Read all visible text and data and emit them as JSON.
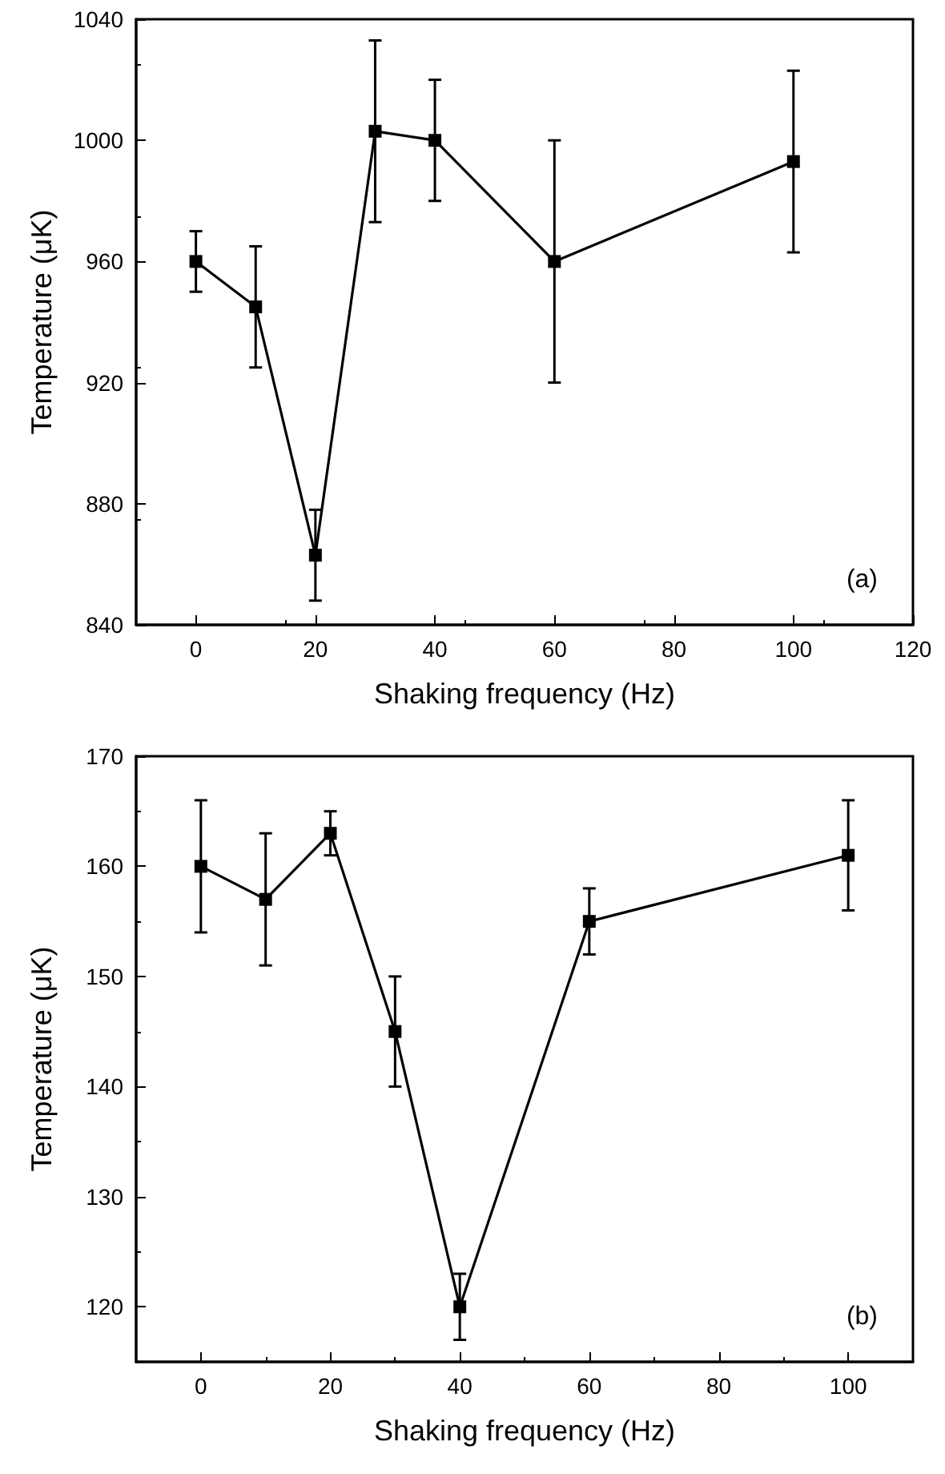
{
  "chart_data": [
    {
      "type": "line",
      "xlabel": "Shaking frequency (Hz)",
      "ylabel": "Temperature (μK)",
      "annotations": [
        "(a)"
      ],
      "marker": "square",
      "line_style": "solid",
      "grid": false,
      "x": [
        0,
        10,
        20,
        30,
        40,
        60,
        100
      ],
      "xlim": [
        -10,
        120
      ],
      "xticks": [
        0,
        20,
        40,
        60,
        80,
        100,
        120
      ],
      "ylim": [
        840,
        1040
      ],
      "yticks": [
        840,
        880,
        920,
        960,
        1000,
        1040
      ],
      "series": [
        {
          "color": "#000000",
          "values": [
            960,
            945,
            863,
            1003,
            1000,
            960,
            993
          ],
          "errors": [
            [
              950,
              970
            ],
            [
              925,
              965
            ],
            [
              848,
              878
            ],
            [
              973,
              1033
            ],
            [
              980,
              1020
            ],
            [
              920,
              1000
            ],
            [
              963,
              1023
            ]
          ]
        }
      ]
    },
    {
      "type": "line",
      "xlabel": "Shaking frequency (Hz)",
      "ylabel": "Temperature (μK)",
      "annotations": [
        "(b)"
      ],
      "marker": "square",
      "line_style": "solid",
      "grid": false,
      "x": [
        0,
        10,
        20,
        30,
        40,
        60,
        100
      ],
      "xlim": [
        -10,
        110
      ],
      "xticks": [
        0,
        20,
        40,
        60,
        80,
        100
      ],
      "ylim": [
        115,
        170
      ],
      "yticks": [
        120,
        130,
        140,
        150,
        160,
        170
      ],
      "series": [
        {
          "color": "#000000",
          "values": [
            160,
            157,
            163,
            145,
            120,
            155,
            161
          ],
          "errors": [
            [
              154,
              166
            ],
            [
              151,
              163
            ],
            [
              161,
              165
            ],
            [
              140,
              150
            ],
            [
              117,
              123
            ],
            [
              152,
              158
            ],
            [
              156,
              166
            ]
          ]
        }
      ]
    }
  ]
}
